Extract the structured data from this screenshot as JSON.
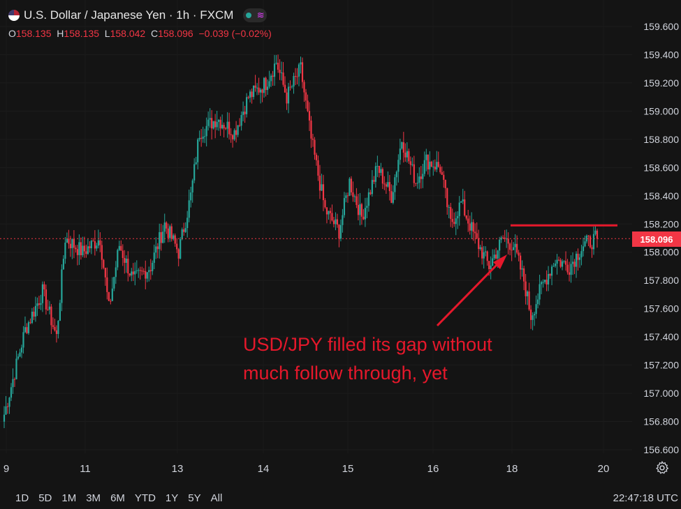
{
  "header": {
    "symbol_title": "U.S. Dollar / Japanese Yen · 1h · FXCM",
    "ohlc": {
      "o_label": "O",
      "o": "158.135",
      "h_label": "H",
      "h": "158.135",
      "l_label": "L",
      "l": "158.042",
      "c_label": "C",
      "c": "158.096",
      "change": "−0.039 (−0.02%)"
    }
  },
  "price_tag": "158.096",
  "annotation": {
    "line1": "USD/JPY filled its gap without",
    "line2": "much follow through, yet"
  },
  "ranges": [
    "1D",
    "5D",
    "1M",
    "3M",
    "6M",
    "YTD",
    "1Y",
    "5Y",
    "All"
  ],
  "clock": "22:47:18 UTC",
  "colors": {
    "up": "#26a69a",
    "down": "#f23645",
    "annotation": "#e5182b",
    "background": "#141414"
  },
  "chart_data": {
    "type": "candlestick",
    "timeframe": "1h",
    "ylim": [
      156.6,
      159.6
    ],
    "y_ticks": [
      "159.600",
      "159.400",
      "159.200",
      "159.000",
      "158.800",
      "158.600",
      "158.400",
      "158.200",
      "158.000",
      "157.800",
      "157.600",
      "157.400",
      "157.200",
      "157.000",
      "156.800",
      "156.600"
    ],
    "x_ticks": [
      "9",
      "11",
      "13",
      "14",
      "15",
      "16",
      "18",
      "20"
    ],
    "last_price": 158.096,
    "resistance_level": 158.19,
    "waypoints": [
      [
        0,
        156.85
      ],
      [
        12,
        157.45
      ],
      [
        22,
        157.72
      ],
      [
        30,
        157.4
      ],
      [
        35,
        158.1
      ],
      [
        45,
        158.0
      ],
      [
        55,
        158.1
      ],
      [
        60,
        157.6
      ],
      [
        66,
        158.05
      ],
      [
        74,
        157.8
      ],
      [
        84,
        157.9
      ],
      [
        92,
        158.2
      ],
      [
        100,
        158.0
      ],
      [
        107,
        158.4
      ],
      [
        112,
        158.85
      ],
      [
        122,
        158.95
      ],
      [
        132,
        158.85
      ],
      [
        140,
        159.1
      ],
      [
        150,
        159.2
      ],
      [
        156,
        159.35
      ],
      [
        162,
        159.1
      ],
      [
        170,
        159.3
      ],
      [
        176,
        158.8
      ],
      [
        184,
        158.3
      ],
      [
        192,
        158.15
      ],
      [
        198,
        158.5
      ],
      [
        205,
        158.25
      ],
      [
        214,
        158.6
      ],
      [
        222,
        158.4
      ],
      [
        228,
        158.8
      ],
      [
        236,
        158.5
      ],
      [
        242,
        158.65
      ],
      [
        250,
        158.6
      ],
      [
        256,
        158.2
      ],
      [
        262,
        158.35
      ],
      [
        270,
        158.1
      ],
      [
        278,
        157.9
      ],
      [
        286,
        158.1
      ],
      [
        292,
        158.05
      ],
      [
        298,
        157.8
      ],
      [
        302,
        157.55
      ],
      [
        308,
        157.75
      ],
      [
        316,
        157.95
      ],
      [
        324,
        157.9
      ],
      [
        332,
        158.05
      ],
      [
        340,
        158.1
      ]
    ]
  }
}
